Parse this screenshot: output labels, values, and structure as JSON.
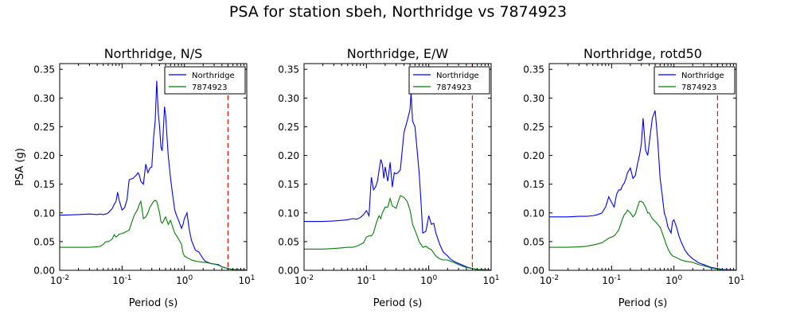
{
  "suptitle": "PSA for station sbeh, Northridge vs 7874923",
  "ylabel": "PSA (g)",
  "colors": {
    "Northridge": "#0000ff",
    "7874923": "#008000",
    "marker": "#ff0000"
  },
  "chart_data": [
    {
      "type": "line",
      "title": "Northridge, N/S",
      "xlabel": "Period (s)",
      "ylabel": "PSA (g)",
      "xscale": "log",
      "xlim": [
        0.01,
        10
      ],
      "ylim": [
        0,
        0.36
      ],
      "xtick_labels": [
        "10^-2",
        "10^-1",
        "10^0",
        "10^1"
      ],
      "ytick_labels": [
        "0.00",
        "0.05",
        "0.10",
        "0.15",
        "0.20",
        "0.25",
        "0.30",
        "0.35"
      ],
      "legend": "top-right",
      "vline_x": 5,
      "series": [
        {
          "name": "Northridge",
          "x": [
            0.01,
            0.02,
            0.03,
            0.04,
            0.045,
            0.05,
            0.055,
            0.06,
            0.065,
            0.07,
            0.075,
            0.08,
            0.085,
            0.09,
            0.1,
            0.11,
            0.12,
            0.13,
            0.15,
            0.16,
            0.17,
            0.18,
            0.19,
            0.2,
            0.22,
            0.24,
            0.26,
            0.28,
            0.3,
            0.32,
            0.34,
            0.36,
            0.38,
            0.4,
            0.42,
            0.44,
            0.46,
            0.48,
            0.5,
            0.55,
            0.6,
            0.65,
            0.7,
            0.75,
            0.8,
            0.85,
            0.9,
            0.95,
            1.0,
            1.1,
            1.2,
            1.3,
            1.5,
            1.7,
            2.0,
            2.2,
            2.4,
            2.6,
            3.0,
            3.5,
            4.0,
            5.0,
            6.0,
            7.5,
            10.0
          ],
          "y": [
            0.096,
            0.097,
            0.098,
            0.097,
            0.098,
            0.097,
            0.098,
            0.1,
            0.104,
            0.108,
            0.115,
            0.12,
            0.136,
            0.122,
            0.105,
            0.109,
            0.123,
            0.158,
            0.16,
            0.163,
            0.166,
            0.17,
            0.165,
            0.155,
            0.15,
            0.185,
            0.17,
            0.178,
            0.18,
            0.23,
            0.26,
            0.33,
            0.275,
            0.25,
            0.215,
            0.208,
            0.245,
            0.285,
            0.27,
            0.2,
            0.16,
            0.13,
            0.105,
            0.095,
            0.088,
            0.08,
            0.073,
            0.08,
            0.09,
            0.1,
            0.07,
            0.052,
            0.035,
            0.032,
            0.02,
            0.015,
            0.014,
            0.012,
            0.011,
            0.01,
            0.006,
            0.003,
            0.0015,
            0.001,
            0.0005
          ]
        },
        {
          "name": "7874923",
          "x": [
            0.01,
            0.02,
            0.03,
            0.04,
            0.045,
            0.05,
            0.055,
            0.06,
            0.065,
            0.07,
            0.075,
            0.08,
            0.085,
            0.09,
            0.1,
            0.11,
            0.12,
            0.13,
            0.15,
            0.16,
            0.17,
            0.18,
            0.19,
            0.2,
            0.22,
            0.24,
            0.26,
            0.28,
            0.3,
            0.32,
            0.34,
            0.36,
            0.38,
            0.4,
            0.42,
            0.44,
            0.46,
            0.48,
            0.5,
            0.55,
            0.6,
            0.65,
            0.7,
            0.75,
            0.8,
            0.85,
            0.9,
            0.95,
            1.0,
            1.1,
            1.2,
            1.3,
            1.5,
            1.7,
            2.0,
            2.2,
            2.4,
            2.6,
            3.0,
            3.5,
            4.0,
            5.0,
            6.0,
            7.5,
            10.0
          ],
          "y": [
            0.04,
            0.04,
            0.04,
            0.041,
            0.042,
            0.045,
            0.05,
            0.05,
            0.052,
            0.055,
            0.062,
            0.058,
            0.06,
            0.063,
            0.064,
            0.066,
            0.068,
            0.07,
            0.09,
            0.098,
            0.102,
            0.108,
            0.115,
            0.12,
            0.09,
            0.093,
            0.1,
            0.11,
            0.115,
            0.12,
            0.122,
            0.12,
            0.11,
            0.1,
            0.085,
            0.082,
            0.085,
            0.09,
            0.093,
            0.08,
            0.087,
            0.075,
            0.065,
            0.06,
            0.055,
            0.05,
            0.045,
            0.03,
            0.025,
            0.022,
            0.02,
            0.018,
            0.016,
            0.015,
            0.014,
            0.014,
            0.013,
            0.012,
            0.011,
            0.009,
            0.006,
            0.003,
            0.0015,
            0.001,
            0.0005
          ]
        }
      ]
    },
    {
      "type": "line",
      "title": "Northridge, E/W",
      "xlabel": "Period (s)",
      "ylabel": "",
      "xscale": "log",
      "xlim": [
        0.01,
        10
      ],
      "ylim": [
        0,
        0.36
      ],
      "xtick_labels": [
        "10^-2",
        "10^-1",
        "10^0",
        "10^1"
      ],
      "ytick_labels": [
        "0.00",
        "0.05",
        "0.10",
        "0.15",
        "0.20",
        "0.25",
        "0.30",
        "0.35"
      ],
      "legend": "top-right",
      "vline_x": 5,
      "series": [
        {
          "name": "Northridge",
          "x": [
            0.01,
            0.02,
            0.03,
            0.04,
            0.05,
            0.06,
            0.07,
            0.08,
            0.09,
            0.1,
            0.11,
            0.12,
            0.13,
            0.14,
            0.15,
            0.16,
            0.17,
            0.18,
            0.19,
            0.2,
            0.22,
            0.24,
            0.26,
            0.28,
            0.3,
            0.32,
            0.35,
            0.4,
            0.45,
            0.5,
            0.52,
            0.55,
            0.6,
            0.65,
            0.7,
            0.75,
            0.8,
            0.9,
            1.0,
            1.1,
            1.2,
            1.3,
            1.5,
            1.7,
            2.0,
            2.2,
            2.5,
            3.0,
            3.5,
            4.0,
            5.0,
            6.0,
            7.5,
            10.0
          ],
          "y": [
            0.085,
            0.085,
            0.086,
            0.087,
            0.088,
            0.09,
            0.089,
            0.092,
            0.097,
            0.104,
            0.095,
            0.162,
            0.14,
            0.145,
            0.155,
            0.175,
            0.193,
            0.185,
            0.16,
            0.18,
            0.155,
            0.188,
            0.145,
            0.17,
            0.168,
            0.17,
            0.175,
            0.24,
            0.26,
            0.28,
            0.31,
            0.26,
            0.25,
            0.21,
            0.17,
            0.12,
            0.065,
            0.068,
            0.095,
            0.08,
            0.082,
            0.065,
            0.045,
            0.032,
            0.025,
            0.02,
            0.016,
            0.012,
            0.009,
            0.006,
            0.003,
            0.0015,
            0.001,
            0.0005
          ]
        },
        {
          "name": "7874923",
          "x": [
            0.01,
            0.02,
            0.03,
            0.04,
            0.05,
            0.06,
            0.07,
            0.08,
            0.09,
            0.1,
            0.11,
            0.12,
            0.13,
            0.14,
            0.15,
            0.16,
            0.17,
            0.18,
            0.19,
            0.2,
            0.22,
            0.24,
            0.26,
            0.28,
            0.3,
            0.32,
            0.35,
            0.4,
            0.45,
            0.5,
            0.52,
            0.55,
            0.6,
            0.65,
            0.7,
            0.75,
            0.8,
            0.9,
            1.0,
            1.1,
            1.2,
            1.3,
            1.5,
            1.7,
            2.0,
            2.2,
            2.5,
            3.0,
            3.5,
            4.0,
            5.0,
            6.0,
            7.5,
            10.0
          ],
          "y": [
            0.037,
            0.037,
            0.038,
            0.039,
            0.04,
            0.04,
            0.042,
            0.045,
            0.048,
            0.058,
            0.06,
            0.06,
            0.065,
            0.078,
            0.088,
            0.095,
            0.09,
            0.1,
            0.105,
            0.11,
            0.11,
            0.125,
            0.112,
            0.11,
            0.108,
            0.118,
            0.13,
            0.127,
            0.12,
            0.105,
            0.095,
            0.08,
            0.07,
            0.06,
            0.05,
            0.045,
            0.04,
            0.042,
            0.038,
            0.036,
            0.03,
            0.025,
            0.02,
            0.018,
            0.018,
            0.016,
            0.014,
            0.01,
            0.007,
            0.005,
            0.003,
            0.0015,
            0.001,
            0.0005
          ]
        }
      ]
    },
    {
      "type": "line",
      "title": "Northridge, rotd50",
      "xlabel": "Period (s)",
      "ylabel": "",
      "xscale": "log",
      "xlim": [
        0.01,
        10
      ],
      "ylim": [
        0,
        0.36
      ],
      "xtick_labels": [
        "10^-2",
        "10^-1",
        "10^0",
        "10^1"
      ],
      "ytick_labels": [
        "0.00",
        "0.05",
        "0.10",
        "0.15",
        "0.20",
        "0.25",
        "0.30",
        "0.35"
      ],
      "legend": "top-right",
      "vline_x": 5,
      "series": [
        {
          "name": "Northridge",
          "x": [
            0.01,
            0.02,
            0.03,
            0.04,
            0.05,
            0.06,
            0.07,
            0.08,
            0.09,
            0.1,
            0.11,
            0.12,
            0.13,
            0.14,
            0.15,
            0.16,
            0.17,
            0.18,
            0.2,
            0.22,
            0.24,
            0.26,
            0.28,
            0.3,
            0.32,
            0.35,
            0.38,
            0.4,
            0.45,
            0.5,
            0.55,
            0.6,
            0.65,
            0.7,
            0.75,
            0.8,
            0.85,
            0.9,
            0.95,
            1.0,
            1.1,
            1.2,
            1.3,
            1.5,
            1.7,
            2.0,
            2.2,
            2.5,
            3.0,
            3.5,
            4.0,
            5.0,
            6.0,
            7.5,
            10.0
          ],
          "y": [
            0.093,
            0.093,
            0.094,
            0.094,
            0.095,
            0.097,
            0.1,
            0.11,
            0.128,
            0.118,
            0.11,
            0.132,
            0.14,
            0.14,
            0.148,
            0.152,
            0.16,
            0.17,
            0.178,
            0.16,
            0.165,
            0.185,
            0.2,
            0.22,
            0.265,
            0.21,
            0.2,
            0.22,
            0.265,
            0.278,
            0.225,
            0.16,
            0.13,
            0.1,
            0.09,
            0.075,
            0.07,
            0.065,
            0.085,
            0.088,
            0.075,
            0.06,
            0.05,
            0.035,
            0.027,
            0.02,
            0.017,
            0.013,
            0.01,
            0.007,
            0.005,
            0.003,
            0.0015,
            0.001,
            0.0005
          ]
        },
        {
          "name": "7874923",
          "x": [
            0.01,
            0.02,
            0.03,
            0.04,
            0.05,
            0.06,
            0.07,
            0.08,
            0.09,
            0.1,
            0.11,
            0.12,
            0.13,
            0.14,
            0.15,
            0.16,
            0.17,
            0.18,
            0.2,
            0.22,
            0.24,
            0.26,
            0.28,
            0.3,
            0.32,
            0.35,
            0.38,
            0.4,
            0.45,
            0.5,
            0.55,
            0.6,
            0.65,
            0.7,
            0.75,
            0.8,
            0.85,
            0.9,
            0.95,
            1.0,
            1.1,
            1.2,
            1.3,
            1.5,
            1.7,
            2.0,
            2.2,
            2.5,
            3.0,
            3.5,
            4.0,
            5.0,
            6.0,
            7.5,
            10.0
          ],
          "y": [
            0.04,
            0.04,
            0.041,
            0.042,
            0.044,
            0.046,
            0.048,
            0.052,
            0.056,
            0.058,
            0.06,
            0.065,
            0.07,
            0.08,
            0.09,
            0.097,
            0.1,
            0.105,
            0.1,
            0.093,
            0.098,
            0.11,
            0.12,
            0.12,
            0.118,
            0.11,
            0.1,
            0.1,
            0.09,
            0.085,
            0.08,
            0.075,
            0.065,
            0.055,
            0.045,
            0.038,
            0.032,
            0.028,
            0.025,
            0.024,
            0.022,
            0.02,
            0.018,
            0.016,
            0.015,
            0.014,
            0.012,
            0.01,
            0.008,
            0.006,
            0.004,
            0.002,
            0.001,
            0.0007,
            0.0005
          ]
        }
      ]
    }
  ]
}
